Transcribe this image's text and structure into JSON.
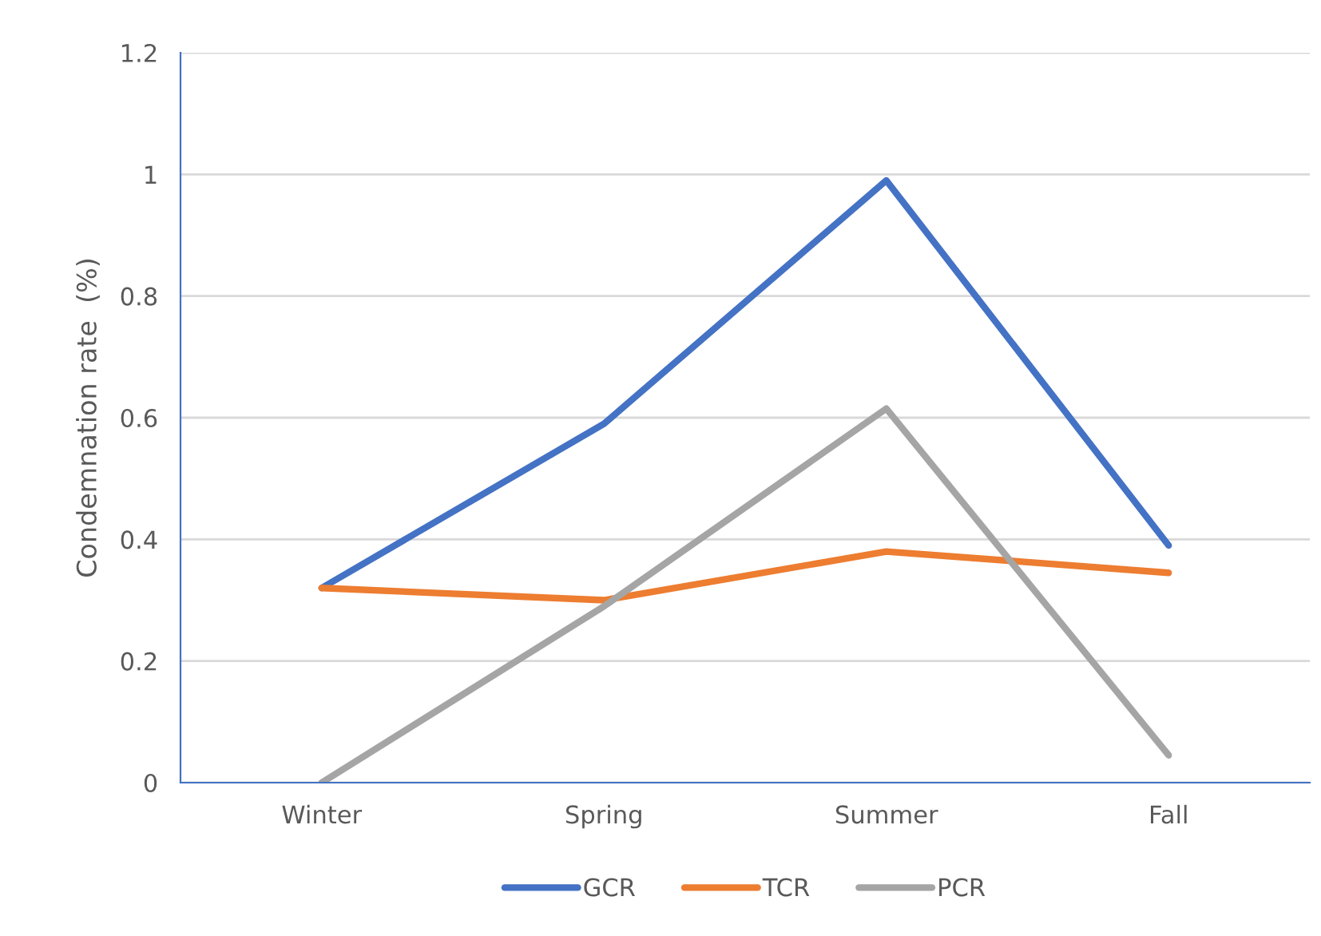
{
  "chart_data": {
    "type": "line",
    "ylabel": "Condemnation rate  (%)",
    "categories": [
      "Winter",
      "Spring",
      "Summer",
      "Fall"
    ],
    "series": [
      {
        "name": "GCR",
        "color": "#4472c4",
        "values": [
          0.32,
          0.59,
          0.99,
          0.39
        ]
      },
      {
        "name": "TCR",
        "color": "#ed7d31",
        "values": [
          0.32,
          0.3,
          0.38,
          0.345
        ]
      },
      {
        "name": "PCR",
        "color": "#a5a5a5",
        "values": [
          0,
          0.29,
          0.615,
          0.045
        ]
      }
    ],
    "ylim": [
      0,
      1.2
    ],
    "yticks": [
      0,
      0.2,
      0.4,
      0.6,
      0.8,
      1,
      1.2
    ],
    "grid": "y",
    "legend": "bottom",
    "marker": "none",
    "line_style": "solid"
  }
}
